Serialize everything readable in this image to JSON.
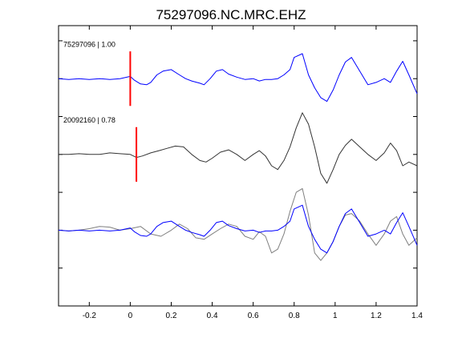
{
  "chart_data": {
    "type": "line",
    "title": "75297096.NC.MRC.EHZ",
    "xlabel": "",
    "ylabel": "",
    "xlim": [
      -0.35,
      1.4
    ],
    "x_ticks": [
      -0.2,
      0,
      0.2,
      0.4,
      0.6,
      0.8,
      1,
      1.2,
      1.4
    ],
    "x_tick_labels": [
      "-0.2",
      "0",
      "0.2",
      "0.4",
      "0.6",
      "0.8",
      "1",
      "1.2",
      "1.4"
    ],
    "ylim": [
      -0.5,
      3.2
    ],
    "y_ticks": [
      0,
      0.5,
      1,
      1.5,
      2,
      2.5,
      3
    ],
    "y_tick_labels": [],
    "grid": false,
    "panels": [
      {
        "label": "75297096 | 1.00",
        "baseline": 2.5,
        "pick_time": 0.0,
        "series": [
          {
            "color": "#0000ff",
            "x": [
              -0.35,
              -0.3,
              -0.25,
              -0.2,
              -0.15,
              -0.1,
              -0.05,
              0,
              0.02,
              0.05,
              0.08,
              0.1,
              0.13,
              0.16,
              0.2,
              0.24,
              0.27,
              0.3,
              0.34,
              0.36,
              0.39,
              0.42,
              0.45,
              0.48,
              0.52,
              0.56,
              0.6,
              0.63,
              0.66,
              0.69,
              0.72,
              0.75,
              0.78,
              0.8,
              0.84,
              0.87,
              0.9,
              0.93,
              0.96,
              0.99,
              1.02,
              1.05,
              1.08,
              1.12,
              1.16,
              1.2,
              1.24,
              1.27,
              1.3,
              1.33,
              1.36,
              1.4
            ],
            "y": [
              2.5,
              2.49,
              2.5,
              2.49,
              2.5,
              2.49,
              2.5,
              2.53,
              2.48,
              2.43,
              2.42,
              2.45,
              2.55,
              2.6,
              2.62,
              2.55,
              2.5,
              2.47,
              2.44,
              2.42,
              2.5,
              2.6,
              2.62,
              2.56,
              2.52,
              2.49,
              2.5,
              2.47,
              2.49,
              2.49,
              2.5,
              2.55,
              2.62,
              2.78,
              2.83,
              2.55,
              2.38,
              2.25,
              2.2,
              2.35,
              2.55,
              2.72,
              2.78,
              2.6,
              2.42,
              2.45,
              2.5,
              2.45,
              2.6,
              2.73,
              2.55,
              2.3
            ]
          }
        ]
      },
      {
        "label": "20092160 | 0.78",
        "baseline": 1.5,
        "pick_time": 0.03,
        "series": [
          {
            "color": "#333333",
            "x": [
              -0.35,
              -0.3,
              -0.25,
              -0.2,
              -0.15,
              -0.1,
              -0.05,
              0,
              0.03,
              0.06,
              0.1,
              0.14,
              0.18,
              0.22,
              0.26,
              0.3,
              0.34,
              0.37,
              0.4,
              0.44,
              0.48,
              0.52,
              0.56,
              0.6,
              0.63,
              0.66,
              0.69,
              0.72,
              0.75,
              0.78,
              0.81,
              0.84,
              0.87,
              0.9,
              0.93,
              0.96,
              0.99,
              1.02,
              1.05,
              1.08,
              1.12,
              1.16,
              1.2,
              1.24,
              1.27,
              1.3,
              1.33,
              1.36,
              1.4
            ],
            "y": [
              1.5,
              1.5,
              1.51,
              1.5,
              1.5,
              1.52,
              1.51,
              1.5,
              1.46,
              1.48,
              1.52,
              1.55,
              1.58,
              1.61,
              1.6,
              1.5,
              1.42,
              1.4,
              1.45,
              1.53,
              1.56,
              1.5,
              1.42,
              1.5,
              1.55,
              1.48,
              1.35,
              1.3,
              1.42,
              1.6,
              1.85,
              2.05,
              1.9,
              1.6,
              1.25,
              1.12,
              1.3,
              1.5,
              1.62,
              1.7,
              1.6,
              1.5,
              1.42,
              1.52,
              1.65,
              1.55,
              1.35,
              1.4,
              1.35
            ]
          }
        ]
      },
      {
        "label": "",
        "baseline": 0.5,
        "pick_time": null,
        "series": [
          {
            "color": "#7f7f7f",
            "x": [
              -0.35,
              -0.3,
              -0.25,
              -0.2,
              -0.15,
              -0.1,
              -0.05,
              0,
              0.05,
              0.1,
              0.15,
              0.2,
              0.24,
              0.28,
              0.32,
              0.36,
              0.4,
              0.44,
              0.48,
              0.52,
              0.56,
              0.6,
              0.63,
              0.66,
              0.69,
              0.72,
              0.75,
              0.78,
              0.81,
              0.84,
              0.87,
              0.9,
              0.93,
              0.96,
              0.99,
              1.02,
              1.05,
              1.08,
              1.12,
              1.16,
              1.2,
              1.24,
              1.27,
              1.3,
              1.33,
              1.36,
              1.4
            ],
            "y": [
              0.5,
              0.49,
              0.5,
              0.52,
              0.55,
              0.54,
              0.5,
              0.52,
              0.55,
              0.45,
              0.42,
              0.5,
              0.58,
              0.52,
              0.4,
              0.38,
              0.45,
              0.52,
              0.58,
              0.55,
              0.42,
              0.38,
              0.48,
              0.42,
              0.2,
              0.25,
              0.45,
              0.75,
              1.0,
              1.05,
              0.7,
              0.2,
              0.1,
              0.2,
              0.35,
              0.55,
              0.7,
              0.72,
              0.62,
              0.45,
              0.3,
              0.45,
              0.62,
              0.68,
              0.45,
              0.3,
              0.4
            ]
          },
          {
            "color": "#0000ff",
            "x": [
              -0.35,
              -0.3,
              -0.25,
              -0.2,
              -0.15,
              -0.1,
              -0.05,
              0,
              0.02,
              0.05,
              0.08,
              0.1,
              0.13,
              0.16,
              0.2,
              0.24,
              0.27,
              0.3,
              0.34,
              0.36,
              0.39,
              0.42,
              0.45,
              0.48,
              0.52,
              0.56,
              0.6,
              0.63,
              0.66,
              0.69,
              0.72,
              0.75,
              0.78,
              0.8,
              0.84,
              0.87,
              0.9,
              0.93,
              0.96,
              0.99,
              1.02,
              1.05,
              1.08,
              1.12,
              1.16,
              1.2,
              1.24,
              1.27,
              1.3,
              1.33,
              1.36,
              1.4
            ],
            "y": [
              0.5,
              0.49,
              0.5,
              0.49,
              0.5,
              0.49,
              0.5,
              0.53,
              0.48,
              0.43,
              0.42,
              0.45,
              0.55,
              0.6,
              0.62,
              0.55,
              0.5,
              0.47,
              0.44,
              0.42,
              0.5,
              0.6,
              0.62,
              0.56,
              0.52,
              0.49,
              0.5,
              0.47,
              0.49,
              0.49,
              0.5,
              0.55,
              0.62,
              0.78,
              0.83,
              0.55,
              0.38,
              0.25,
              0.2,
              0.35,
              0.55,
              0.72,
              0.78,
              0.6,
              0.42,
              0.45,
              0.5,
              0.45,
              0.6,
              0.73,
              0.55,
              0.3
            ]
          }
        ]
      }
    ],
    "pick_color": "#ff0000"
  }
}
